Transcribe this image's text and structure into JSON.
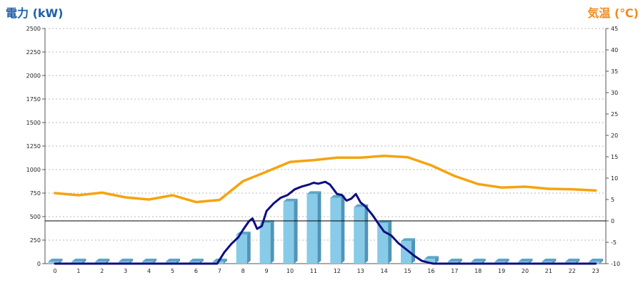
{
  "chart_data": {
    "type": "bar+line",
    "left_axis_title": "電力 (kW)",
    "right_axis_title": "気温 (℃)",
    "categories": [
      "0",
      "1",
      "2",
      "3",
      "4",
      "5",
      "6",
      "7",
      "8",
      "9",
      "10",
      "11",
      "12",
      "13",
      "14",
      "15",
      "16",
      "17",
      "18",
      "19",
      "20",
      "21",
      "22",
      "23"
    ],
    "left_ylim": [
      0,
      2500
    ],
    "left_yticks": [
      0,
      250,
      500,
      750,
      1000,
      1250,
      1500,
      1750,
      2000,
      2250,
      2500
    ],
    "right_ylim": [
      -10,
      45
    ],
    "right_yticks": [
      -10,
      -5,
      0,
      5,
      10,
      15,
      20,
      25,
      30,
      35,
      40,
      45
    ],
    "grid": "horizontal dotted",
    "series": [
      {
        "type": "bar",
        "axis": "left",
        "color": "#87cbe8",
        "values": [
          0,
          0,
          0,
          0,
          0,
          0,
          0,
          15,
          310,
          430,
          660,
          740,
          700,
          600,
          430,
          240,
          50,
          0,
          0,
          0,
          0,
          0,
          0,
          0
        ]
      },
      {
        "type": "line",
        "axis": "left",
        "color": "#0d0d80",
        "x": [
          0,
          1,
          2,
          3,
          4,
          5,
          6,
          6.9,
          7.2,
          7.5,
          7.8,
          8.0,
          8.25,
          8.4,
          8.6,
          8.8,
          9.0,
          9.3,
          9.6,
          9.9,
          10.2,
          10.5,
          10.8,
          11.0,
          11.2,
          11.5,
          11.7,
          12.0,
          12.2,
          12.4,
          12.6,
          12.8,
          13.0,
          13.2,
          13.5,
          13.8,
          14.0,
          14.3,
          14.6,
          15.0,
          15.3,
          15.6,
          15.9,
          16.1,
          16.3,
          17,
          18,
          19,
          20,
          21,
          22,
          23
        ],
        "values": [
          0,
          0,
          0,
          0,
          0,
          0,
          0,
          0,
          120,
          210,
          280,
          360,
          450,
          480,
          370,
          400,
          560,
          640,
          700,
          730,
          790,
          820,
          840,
          860,
          850,
          870,
          840,
          740,
          730,
          670,
          690,
          740,
          650,
          610,
          520,
          410,
          340,
          300,
          220,
          140,
          80,
          30,
          10,
          0,
          0,
          0,
          0,
          0,
          0,
          0,
          0,
          0
        ]
      },
      {
        "type": "line",
        "axis": "right",
        "color": "#f5a30f",
        "values": [
          6.5,
          6.0,
          6.6,
          5.5,
          5.0,
          6.0,
          4.4,
          4.9,
          9.3,
          11.5,
          13.8,
          14.2,
          14.8,
          14.8,
          15.2,
          14.9,
          13.0,
          10.5,
          8.6,
          7.8,
          8.0,
          7.5,
          7.4,
          7.1
        ]
      }
    ],
    "reference_line": {
      "axis": "right",
      "value": 0,
      "color": "#000000"
    }
  }
}
